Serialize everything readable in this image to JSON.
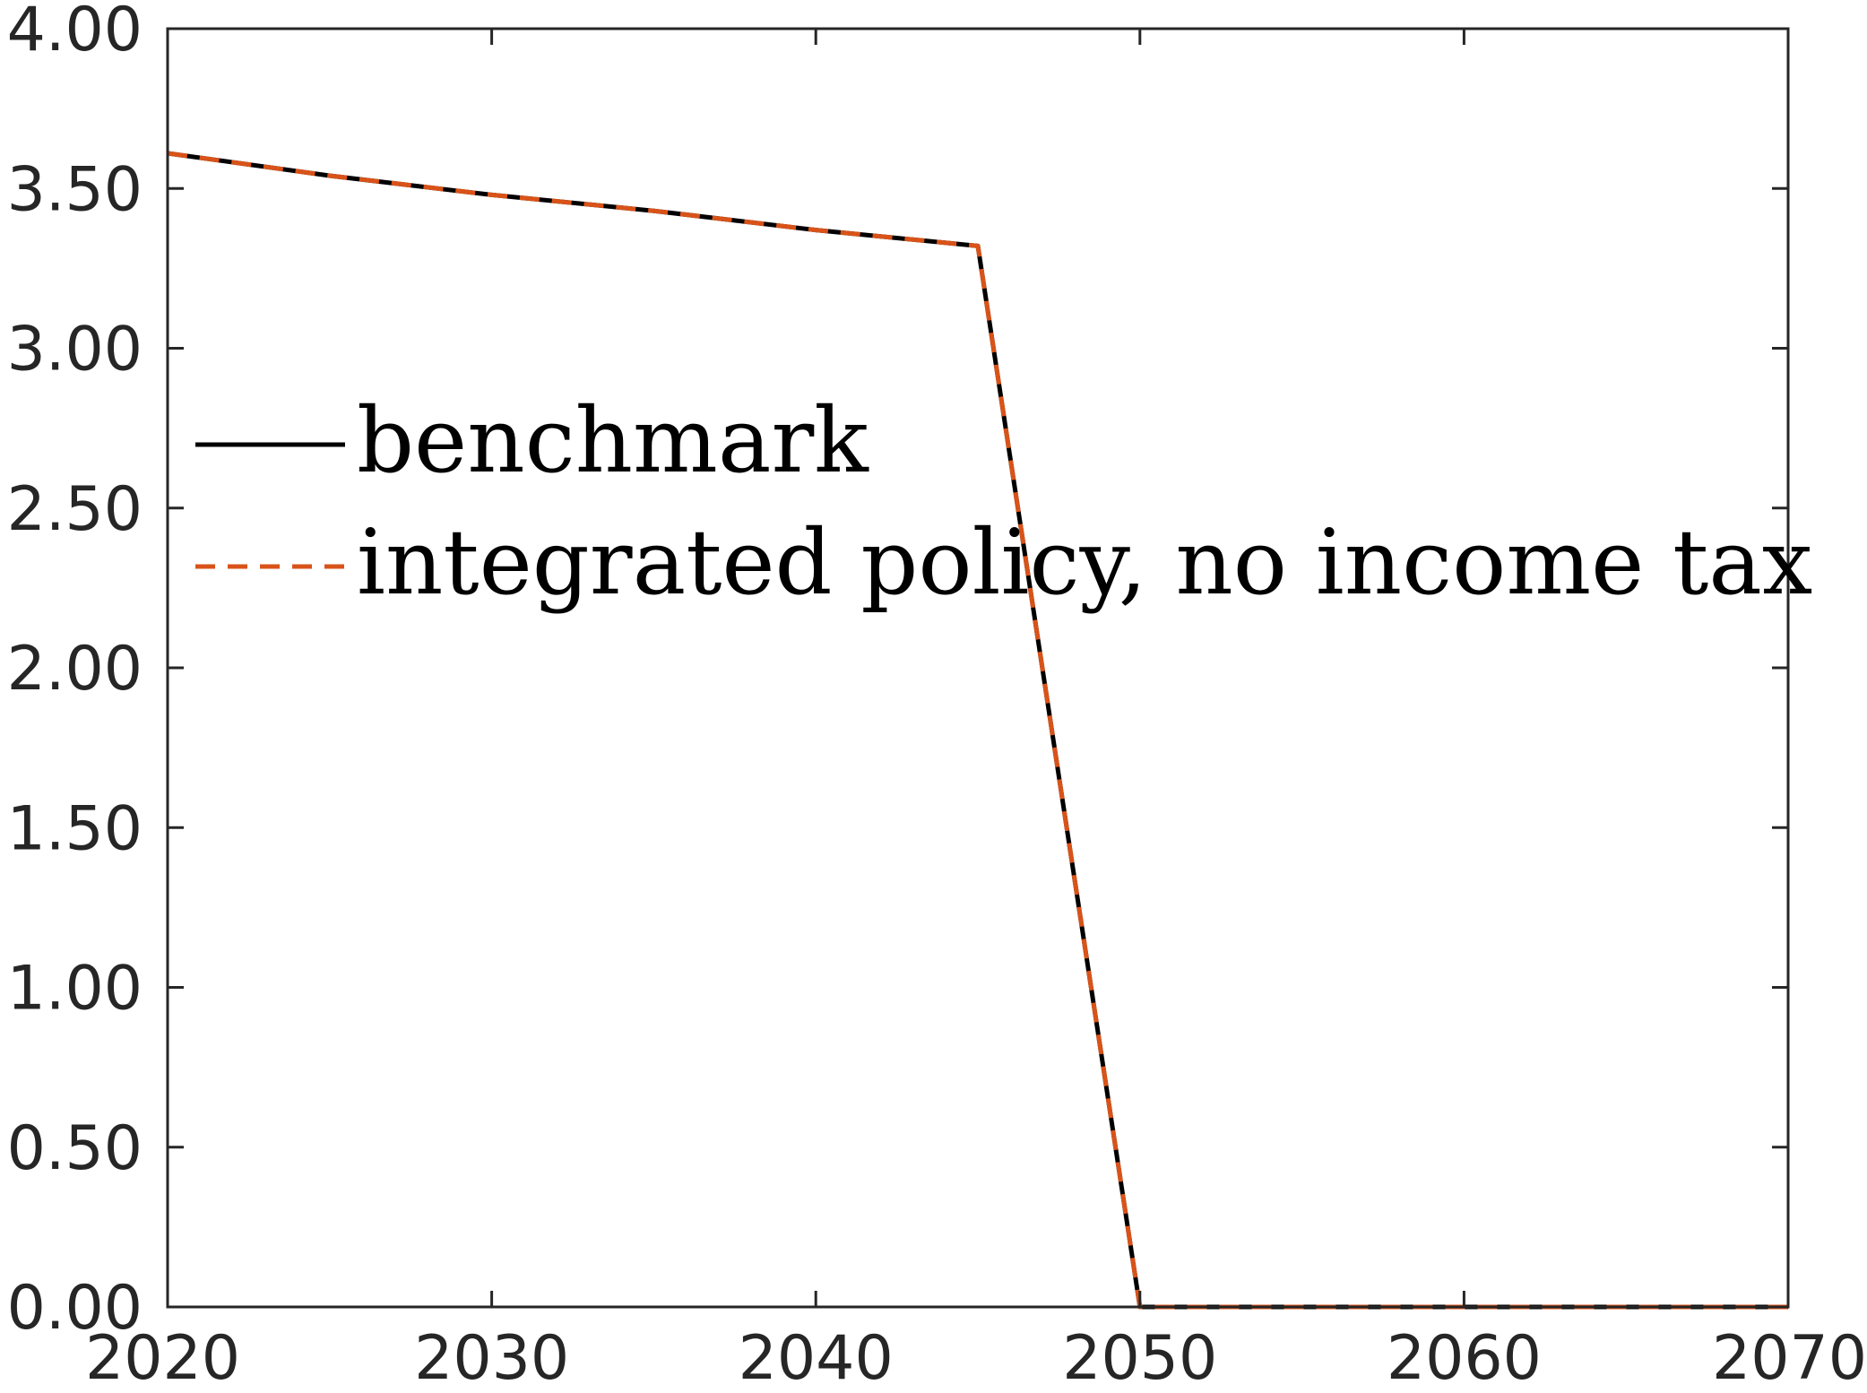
{
  "chart_data": {
    "type": "line",
    "title": "",
    "xlabel": "",
    "ylabel": "",
    "xlim": [
      2020,
      2070
    ],
    "ylim": [
      0,
      4
    ],
    "xticks": [
      2020,
      2030,
      2040,
      2050,
      2060,
      2070
    ],
    "yticks": [
      0,
      0.5,
      1,
      1.5,
      2,
      2.5,
      3,
      3.5,
      4
    ],
    "xtick_labels": [
      "2020",
      "2030",
      "2040",
      "2050",
      "2060",
      "2070"
    ],
    "ytick_labels": [
      "0.00",
      "0.50",
      "1.00",
      "1.50",
      "2.00",
      "2.50",
      "3.00",
      "3.50",
      "4.00"
    ],
    "grid": false,
    "legend_position": "upper-left",
    "series": [
      {
        "name": "benchmark",
        "style": "solid",
        "color": "#000000",
        "x": [
          2020,
          2025,
          2030,
          2035,
          2040,
          2045,
          2050,
          2055,
          2060,
          2065,
          2070
        ],
        "y": [
          3.61,
          3.54,
          3.48,
          3.43,
          3.37,
          3.32,
          0.0,
          0.0,
          0.0,
          0.0,
          0.0
        ]
      },
      {
        "name": "integrated policy, no income tax",
        "style": "dashed",
        "color": "#D95319",
        "x": [
          2020,
          2025,
          2030,
          2035,
          2040,
          2045,
          2050,
          2055,
          2060,
          2065,
          2070
        ],
        "y": [
          3.61,
          3.54,
          3.48,
          3.43,
          3.37,
          3.32,
          0.0,
          0.0,
          0.0,
          0.0,
          0.0
        ]
      }
    ]
  }
}
